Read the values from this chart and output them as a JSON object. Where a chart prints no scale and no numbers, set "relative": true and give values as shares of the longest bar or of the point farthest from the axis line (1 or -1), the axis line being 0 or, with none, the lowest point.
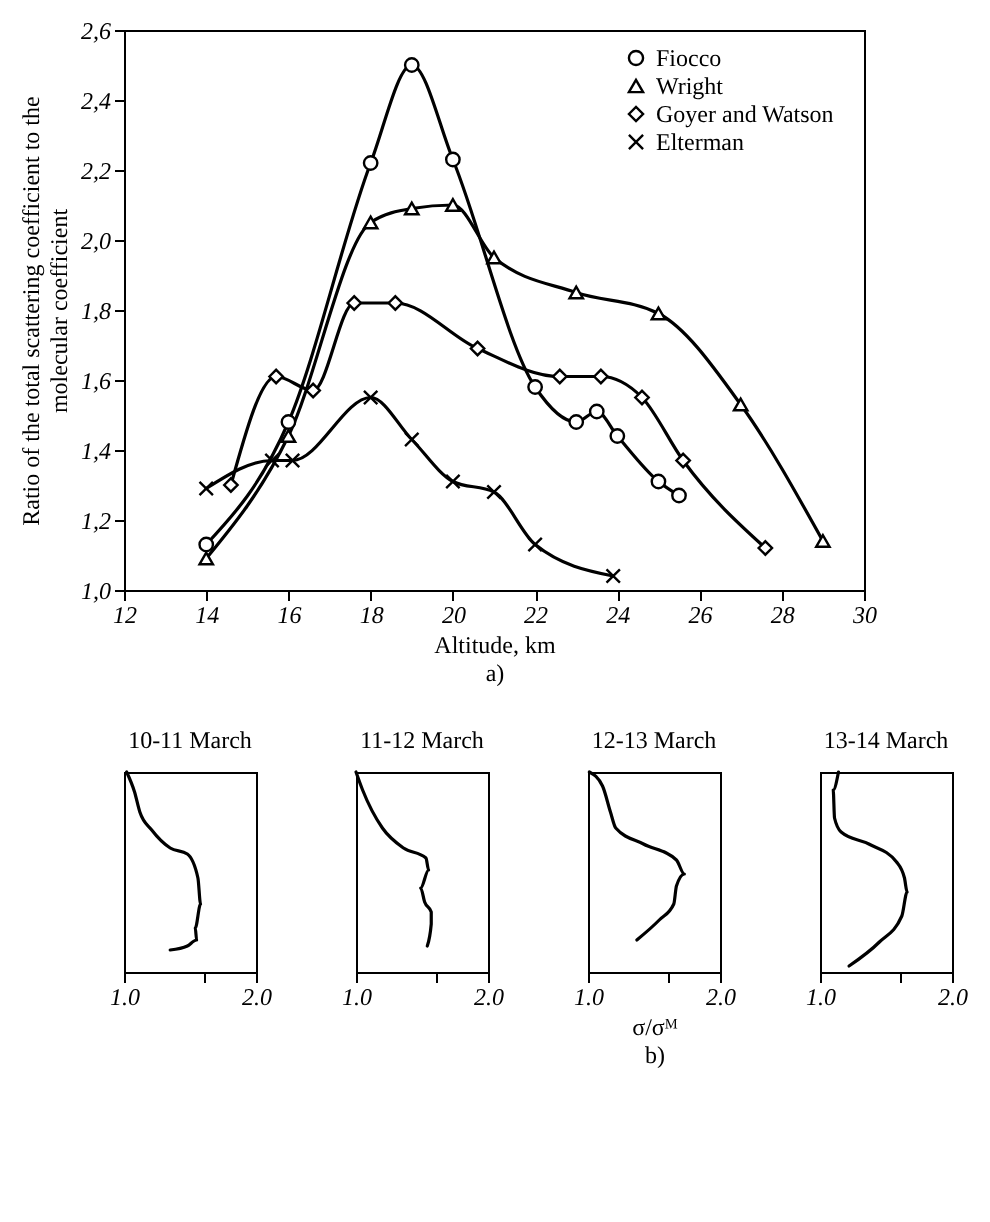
{
  "chart_data": [
    {
      "type": "line",
      "xlabel": "Altitude, km",
      "ylabel": "Ratio of the total scattering coefficient to the molecular coefficient",
      "annotations": [
        "a)"
      ],
      "xlim": [
        12,
        30
      ],
      "ylim": [
        1.0,
        2.6
      ],
      "xticks": [
        12,
        14,
        16,
        18,
        20,
        22,
        24,
        26,
        28,
        30
      ],
      "yticks": [
        {
          "value": 1.0,
          "label": "1,0"
        },
        {
          "value": 1.2,
          "label": "1,2"
        },
        {
          "value": 1.4,
          "label": "1,4"
        },
        {
          "value": 1.6,
          "label": "1,6"
        },
        {
          "value": 1.8,
          "label": "1,8"
        },
        {
          "value": 2.0,
          "label": "2,0"
        },
        {
          "value": 2.2,
          "label": "2,2"
        },
        {
          "value": 2.4,
          "label": "2,4"
        },
        {
          "value": 2.6,
          "label": "2,6"
        }
      ],
      "legend": "top right",
      "series": [
        {
          "name": "Fiocco",
          "color": "#000000",
          "marker": "circle",
          "x": [
            14,
            16,
            18,
            19,
            20,
            22,
            23,
            23.5,
            24,
            25,
            25.5
          ],
          "values": [
            1.13,
            1.48,
            2.22,
            2.5,
            2.23,
            1.58,
            1.48,
            1.51,
            1.44,
            1.31,
            1.27
          ]
        },
        {
          "name": "Wright",
          "color": "#000000",
          "marker": "triangle",
          "x": [
            14,
            16,
            18,
            19,
            20,
            21,
            23,
            25,
            27,
            29
          ],
          "values": [
            1.09,
            1.44,
            2.05,
            2.09,
            2.1,
            1.95,
            1.85,
            1.79,
            1.53,
            1.14
          ]
        },
        {
          "name": "Goyer and Watson",
          "color": "#000000",
          "marker": "diamond",
          "x": [
            14.6,
            15.7,
            16.6,
            17.6,
            18.6,
            20.6,
            22.6,
            23.6,
            24.6,
            25.6,
            27.6
          ],
          "values": [
            1.3,
            1.61,
            1.57,
            1.82,
            1.82,
            1.69,
            1.61,
            1.61,
            1.55,
            1.37,
            1.12
          ]
        },
        {
          "name": "Elterman",
          "color": "#000000",
          "marker": "cross",
          "x": [
            14,
            15.6,
            16.1,
            18,
            19,
            20,
            21,
            22,
            23.9
          ],
          "values": [
            1.29,
            1.37,
            1.37,
            1.55,
            1.43,
            1.31,
            1.28,
            1.13,
            1.04
          ]
        }
      ]
    },
    {
      "type": "line",
      "relative": true,
      "title": "10-11 March",
      "xlim": [
        1.0,
        2.0
      ],
      "xticks": [
        {
          "value": 1.0,
          "label": "1.0"
        },
        {
          "value": 1.6,
          "label": null
        },
        {
          "value": 2.0,
          "label": "2.0"
        }
      ],
      "series": [
        {
          "color": "#000000",
          "x": [
            1.02,
            1.08,
            1.12,
            1.21,
            1.35,
            1.48,
            1.56,
            1.58,
            1.54,
            1.55,
            1.48,
            1.35
          ],
          "values": [
            1,
            0.9,
            0.8,
            0.71,
            0.62,
            0.59,
            0.47,
            0.34,
            0.22,
            0.16,
            0.13,
            0.11
          ]
        }
      ]
    },
    {
      "type": "line",
      "relative": true,
      "title": "11-12 March",
      "xlim": [
        1.0,
        2.0
      ],
      "xticks": [
        {
          "value": 1.0,
          "label": "1.0"
        },
        {
          "value": 1.6,
          "label": null
        },
        {
          "value": 2.0,
          "label": "2.0"
        }
      ],
      "series": [
        {
          "color": "#000000",
          "x": [
            1.0,
            1.05,
            1.2,
            1.36,
            1.53,
            1.55,
            1.49,
            1.52,
            1.57,
            1.57,
            1.54
          ],
          "values": [
            1,
            0.91,
            0.72,
            0.62,
            0.57,
            0.51,
            0.42,
            0.35,
            0.3,
            0.24,
            0.13
          ]
        }
      ]
    },
    {
      "type": "line",
      "relative": true,
      "title": "12-13 March",
      "xlabel": "σ/σᴹ",
      "annotations": [
        "b)"
      ],
      "xlim": [
        1.0,
        2.0
      ],
      "xticks": [
        {
          "value": 1.0,
          "label": "1.0"
        },
        {
          "value": 1.6,
          "label": null
        },
        {
          "value": 2.0,
          "label": "2.0"
        }
      ],
      "series": [
        {
          "color": "#000000",
          "x": [
            1.01,
            1.11,
            1.17,
            1.21,
            1.42,
            1.67,
            1.73,
            1.67,
            1.65,
            1.54,
            1.37
          ],
          "values": [
            1,
            0.93,
            0.8,
            0.72,
            0.64,
            0.56,
            0.49,
            0.43,
            0.34,
            0.26,
            0.16
          ]
        }
      ]
    },
    {
      "type": "line",
      "relative": true,
      "title": "13-14 March",
      "xlim": [
        1.0,
        2.0
      ],
      "xticks": [
        {
          "value": 1.0,
          "label": "1.0"
        },
        {
          "value": 1.6,
          "label": null
        },
        {
          "value": 2.0,
          "label": "2.0"
        }
      ],
      "series": [
        {
          "color": "#000000",
          "x": [
            1.14,
            1.1,
            1.11,
            1.16,
            1.37,
            1.58,
            1.64,
            1.66,
            1.62,
            1.45,
            1.22
          ],
          "values": [
            1,
            0.91,
            0.77,
            0.7,
            0.64,
            0.55,
            0.47,
            0.4,
            0.28,
            0.15,
            0.03
          ]
        }
      ]
    }
  ]
}
